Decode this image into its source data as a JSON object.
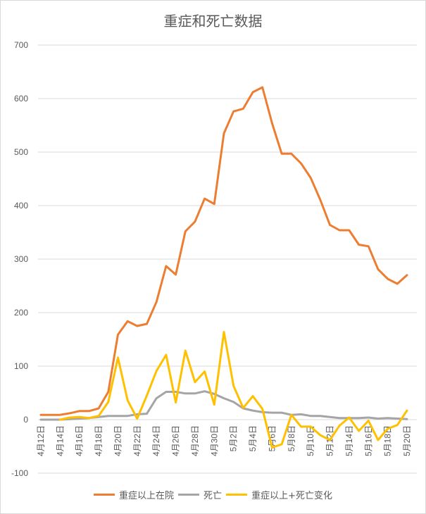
{
  "chart_data": {
    "type": "line",
    "title": "重症和死亡数据",
    "ylim": [
      -100,
      700
    ],
    "yticks": [
      -100,
      0,
      100,
      200,
      300,
      400,
      500,
      600,
      700
    ],
    "grid": true,
    "legend_position": "bottom",
    "x": [
      "4月12日",
      "4月13日",
      "4月14日",
      "4月15日",
      "4月16日",
      "4月17日",
      "4月18日",
      "4月19日",
      "4月20日",
      "4月21日",
      "4月22日",
      "4月23日",
      "4月24日",
      "4月25日",
      "4月26日",
      "4月27日",
      "4月28日",
      "4月29日",
      "4月30日",
      "5月1日",
      "5月2日",
      "5月3日",
      "5月4日",
      "5月5日",
      "5月6日",
      "5月7日",
      "5月8日",
      "5月9日",
      "5月10日",
      "5月11日",
      "5月12日",
      "5月13日",
      "5月14日",
      "5月15日",
      "5月16日",
      "5月17日",
      "5月18日",
      "5月19日",
      "5月20日"
    ],
    "x_tick_labels": [
      "4月12日",
      "",
      "4月14日",
      "",
      "4月16日",
      "",
      "4月18日",
      "",
      "4月20日",
      "",
      "4月22日",
      "",
      "4月24日",
      "",
      "4月26日",
      "",
      "4月28日",
      "",
      "4月30日",
      "",
      "5月2日",
      "",
      "5月4日",
      "",
      "5月6日",
      "",
      "5月8日",
      "",
      "5月10日",
      "",
      "5月12日",
      "",
      "5月14日",
      "",
      "5月16日",
      "",
      "5月18日",
      "",
      "5月20日"
    ],
    "series": [
      {
        "name": "重症以上在院",
        "color": "#ED7D31",
        "values": [
          9,
          9,
          9,
          12,
          16,
          16,
          21,
          52,
          159,
          184,
          175,
          179,
          220,
          287,
          271,
          352,
          370,
          413,
          403,
          535,
          576,
          581,
          612,
          621,
          554,
          497,
          497,
          479,
          452,
          411,
          364,
          354,
          354,
          327,
          324,
          281,
          263,
          254,
          270
        ]
      },
      {
        "name": "死亡",
        "color": "#A5A5A5",
        "values": [
          0,
          0,
          0,
          1,
          2,
          3,
          5,
          7,
          7,
          7,
          10,
          11,
          40,
          52,
          52,
          49,
          49,
          53,
          48,
          40,
          33,
          21,
          17,
          14,
          13,
          13,
          9,
          10,
          7,
          7,
          5,
          3,
          3,
          3,
          4,
          2,
          3,
          2,
          1
        ]
      },
      {
        "name": "重症以上+死亡变化",
        "color": "#FFC000",
        "values": [
          null,
          null,
          0,
          4,
          5,
          3,
          7,
          33,
          116,
          36,
          2,
          45,
          91,
          121,
          32,
          129,
          70,
          90,
          28,
          164,
          63,
          22,
          44,
          20,
          -52,
          -46,
          9,
          -13,
          -13,
          -29,
          -38,
          -11,
          4,
          -21,
          -2,
          -38,
          -17,
          -10,
          17
        ]
      }
    ]
  }
}
